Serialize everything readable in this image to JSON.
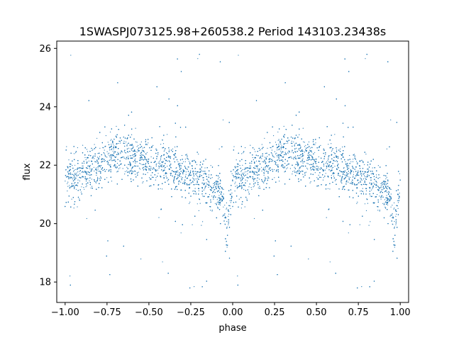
{
  "chart_data": {
    "type": "scatter",
    "title": "1SWASPJ073125.98+260538.2 Period 143103.23438s",
    "xlabel": "phase",
    "ylabel": "flux",
    "xlim": [
      -1.05,
      1.05
    ],
    "ylim": [
      17.3,
      26.25
    ],
    "xticks": [
      -1.0,
      -0.75,
      -0.5,
      -0.25,
      0.0,
      0.25,
      0.5,
      0.75,
      1.0
    ],
    "xtick_labels": [
      "−1.00",
      "−0.75",
      "−0.50",
      "−0.25",
      "0.00",
      "0.25",
      "0.50",
      "0.75",
      "1.00"
    ],
    "yticks": [
      18,
      20,
      22,
      24,
      26
    ],
    "ytick_labels": [
      "18",
      "20",
      "22",
      "24",
      "26"
    ],
    "grid": false,
    "marker_color": "#1f77b4",
    "profile": {
      "phase": [
        -1.0,
        -0.9,
        -0.8,
        -0.7,
        -0.6,
        -0.5,
        -0.4,
        -0.3,
        -0.2,
        -0.1,
        -0.06,
        -0.045,
        -0.03,
        -0.02,
        0.0
      ],
      "flux": [
        21.6,
        21.7,
        22.0,
        22.5,
        22.3,
        22.1,
        22.0,
        21.8,
        21.5,
        21.2,
        21.0,
        20.3,
        19.6,
        20.8,
        21.5
      ]
    }
  }
}
